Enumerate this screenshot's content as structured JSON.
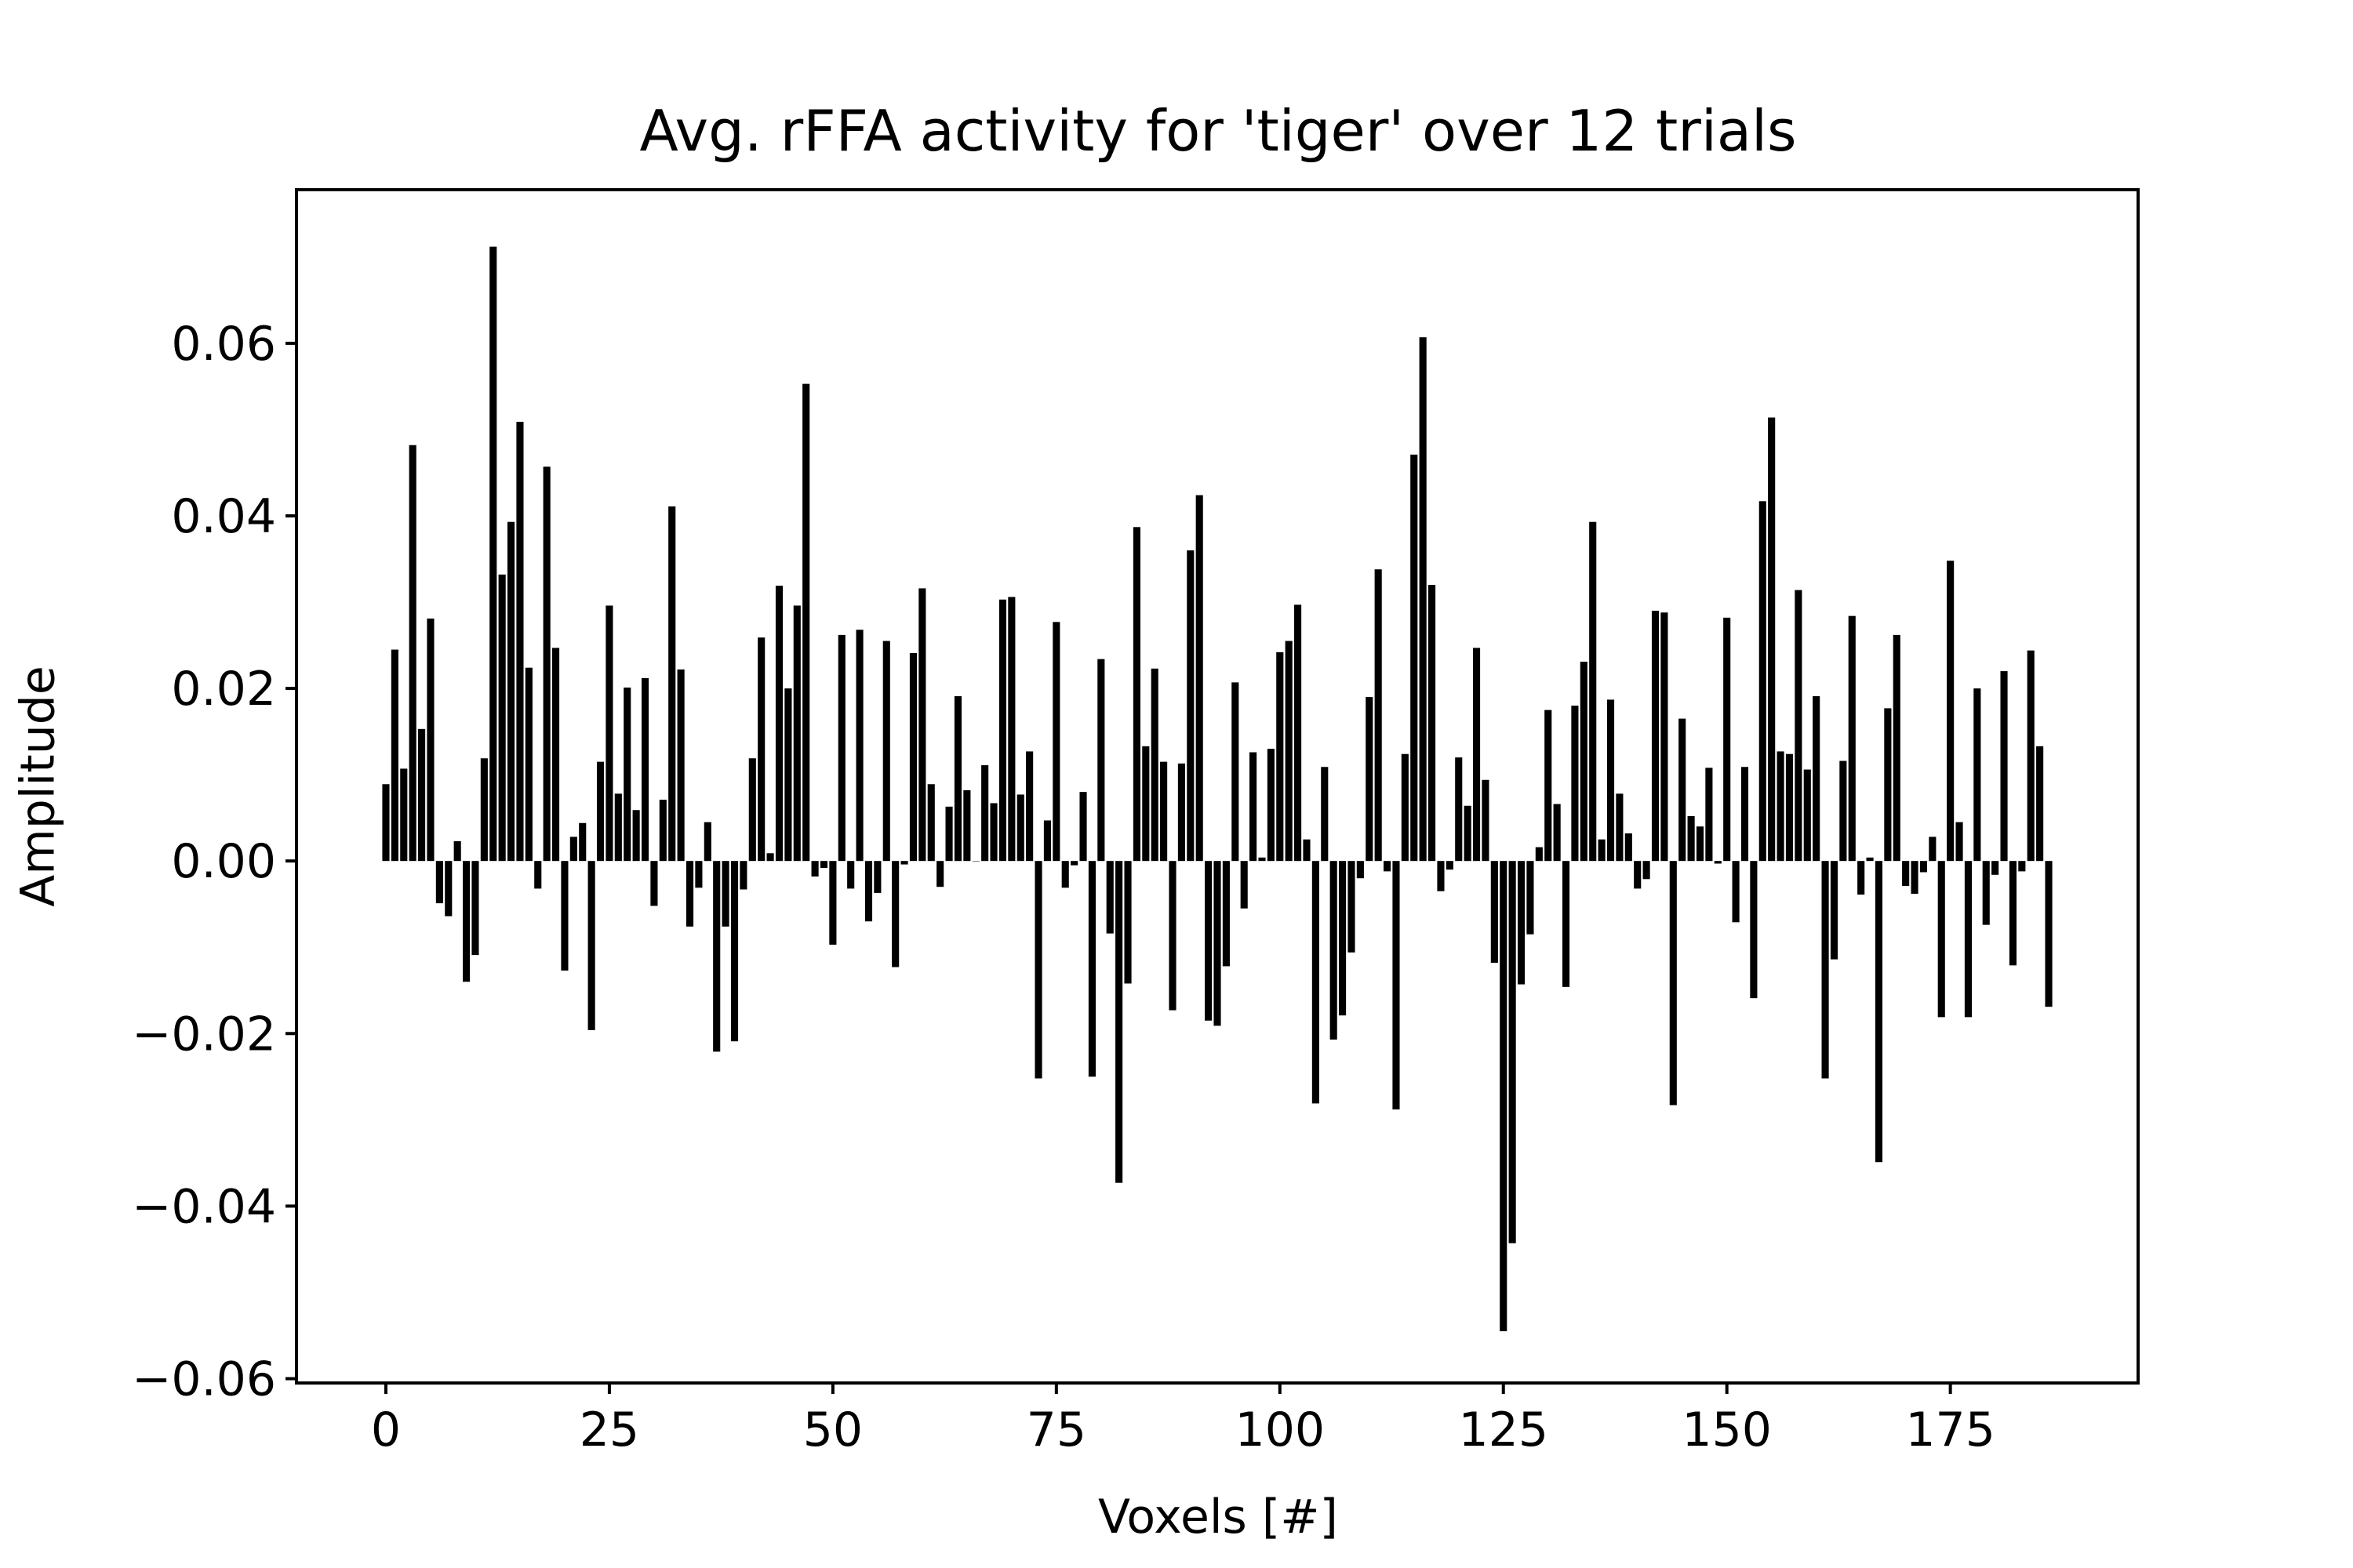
{
  "chart_data": {
    "type": "bar",
    "title": "Avg. rFFA activity for 'tiger' over 12 trials",
    "xlabel": "Voxels [#]",
    "ylabel": "Amplitude",
    "xlim": [
      -10,
      196
    ],
    "ylim": [
      -0.0605,
      0.0778
    ],
    "grid": false,
    "legend": "none",
    "bar_color": "#000000",
    "x_ticks": [
      {
        "value": 0,
        "label": "0"
      },
      {
        "value": 25,
        "label": "25"
      },
      {
        "value": 50,
        "label": "50"
      },
      {
        "value": 75,
        "label": "75"
      },
      {
        "value": 100,
        "label": "100"
      },
      {
        "value": 125,
        "label": "125"
      },
      {
        "value": 150,
        "label": "150"
      },
      {
        "value": 175,
        "label": "175"
      }
    ],
    "y_ticks": [
      {
        "value": -0.06,
        "label": "−0.06"
      },
      {
        "value": -0.04,
        "label": "−0.04"
      },
      {
        "value": -0.02,
        "label": "−0.02"
      },
      {
        "value": 0.0,
        "label": "0.00"
      },
      {
        "value": 0.02,
        "label": "0.02"
      },
      {
        "value": 0.04,
        "label": "0.04"
      },
      {
        "value": 0.06,
        "label": "0.06"
      }
    ],
    "values": [
      0.0089,
      0.0245,
      0.0107,
      0.0482,
      0.0153,
      0.0281,
      -0.0049,
      -0.0064,
      0.0023,
      -0.014,
      -0.0109,
      0.0119,
      0.0712,
      0.0332,
      0.0393,
      0.0509,
      0.0224,
      -0.0032,
      0.0457,
      0.0247,
      -0.0127,
      0.0028,
      0.0044,
      -0.0196,
      0.0115,
      0.0296,
      0.0078,
      0.0201,
      0.0059,
      0.0212,
      -0.0052,
      0.0071,
      0.0411,
      0.0222,
      -0.0076,
      -0.0031,
      0.0045,
      -0.0221,
      -0.0076,
      -0.0209,
      -0.0033,
      0.0119,
      0.0259,
      0.0009,
      0.0319,
      0.02,
      0.0296,
      0.0553,
      -0.0018,
      -0.0008,
      -0.0097,
      0.0262,
      -0.0032,
      0.0268,
      -0.007,
      -0.0037,
      0.0255,
      -0.0123,
      -0.0004,
      0.0241,
      0.0316,
      0.0089,
      -0.003,
      0.0063,
      0.0191,
      0.0082,
      0.0,
      0.0111,
      0.0067,
      0.0303,
      0.0306,
      0.0077,
      0.0127,
      -0.0252,
      0.0047,
      0.0277,
      -0.0031,
      -0.0005,
      0.008,
      -0.025,
      0.0234,
      -0.0084,
      -0.0373,
      -0.0142,
      0.0387,
      0.0133,
      0.0223,
      0.0115,
      -0.0173,
      0.0113,
      0.036,
      0.0424,
      -0.0185,
      -0.0191,
      -0.0122,
      0.0207,
      -0.0055,
      0.0126,
      0.0004,
      0.013,
      0.0242,
      0.0255,
      0.0297,
      0.0025,
      -0.0281,
      0.0109,
      -0.0207,
      -0.0179,
      -0.0106,
      -0.002,
      0.019,
      0.0338,
      -0.0012,
      -0.0288,
      0.0124,
      0.0471,
      0.0607,
      0.032,
      -0.0035,
      -0.001,
      0.012,
      0.0064,
      0.0247,
      0.0094,
      -0.0118,
      -0.0545,
      -0.0443,
      -0.0143,
      -0.0085,
      0.0016,
      0.0175,
      0.0066,
      -0.0146,
      0.018,
      0.0231,
      0.0393,
      0.0025,
      0.0187,
      0.0078,
      0.0032,
      -0.0032,
      -0.0021,
      0.029,
      0.0288,
      -0.0283,
      0.0165,
      0.0052,
      0.004,
      0.0108,
      -0.0003,
      0.0282,
      -0.0071,
      0.0109,
      -0.0159,
      0.0417,
      0.0514,
      0.0127,
      0.0124,
      0.0314,
      0.0106,
      0.0191,
      -0.0252,
      -0.0114,
      0.0116,
      0.0284,
      -0.0039,
      0.0004,
      -0.0349,
      0.0177,
      0.0262,
      -0.0029,
      -0.0038,
      -0.0013,
      0.0028,
      -0.0181,
      0.0348,
      0.0045,
      -0.0181,
      0.02,
      -0.0074,
      -0.0016,
      0.022,
      -0.0121,
      -0.0012,
      0.0244,
      0.0133,
      -0.0169
    ]
  }
}
